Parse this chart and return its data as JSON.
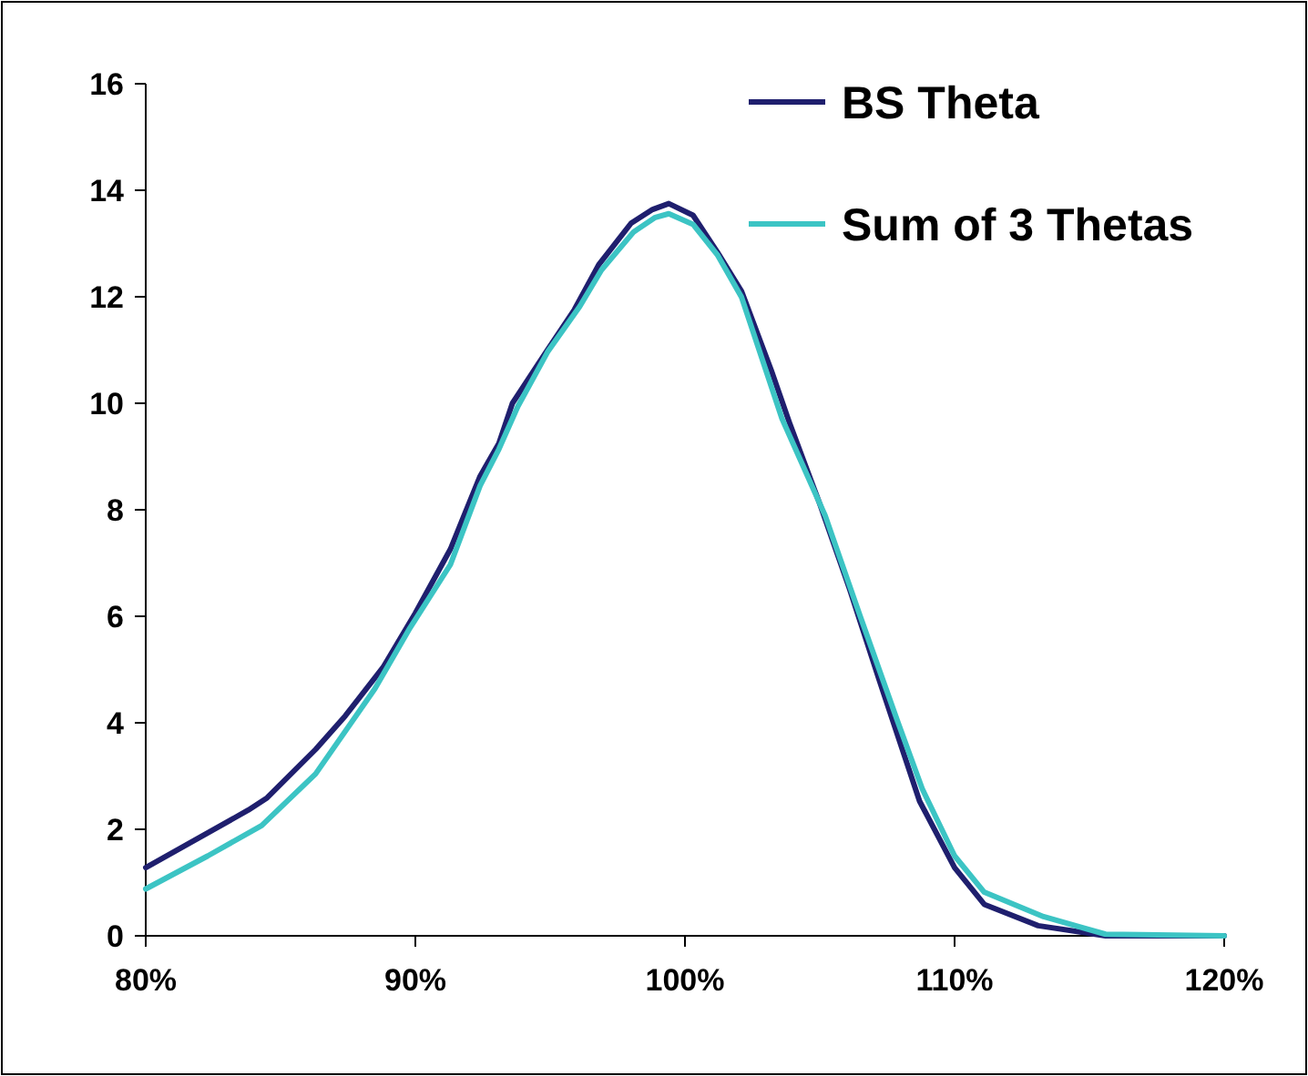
{
  "chart_data": {
    "type": "line",
    "xlim": [
      80,
      120
    ],
    "ylim": [
      0,
      16
    ],
    "xticks": [
      {
        "value": 80,
        "label": "80%"
      },
      {
        "value": 90,
        "label": "90%"
      },
      {
        "value": 100,
        "label": "100%"
      },
      {
        "value": 110,
        "label": "110%"
      },
      {
        "value": 120,
        "label": "120%"
      }
    ],
    "yticks": [
      0,
      2,
      4,
      6,
      8,
      10,
      12,
      14,
      16
    ],
    "grid": false,
    "legend": "top right",
    "marker": "none",
    "line_style": "solid",
    "series": [
      {
        "name": "BS Theta",
        "color": "#1f1f6e",
        "x": [
          80,
          83.8,
          84.5,
          86.3,
          87.4,
          88.8,
          90,
          91.3,
          92.4,
          93.1,
          93.6,
          94.9,
          95.9,
          96.8,
          98,
          98.8,
          99.4,
          100.3,
          101.2,
          102.1,
          103.2,
          103.9,
          105,
          106.1,
          107.2,
          108.7,
          110,
          111.1,
          113.1,
          115.6,
          120
        ],
        "values": [
          1.28,
          2.36,
          2.59,
          3.5,
          4.13,
          5.04,
          6.06,
          7.26,
          8.63,
          9.25,
          10.0,
          11.0,
          11.76,
          12.6,
          13.38,
          13.64,
          13.75,
          13.53,
          12.84,
          12.1,
          10.62,
          9.6,
          8.11,
          6.52,
          4.81,
          2.53,
          1.28,
          0.59,
          0.19,
          0,
          0
        ]
      },
      {
        "name": "Sum of 3 Thetas",
        "color": "#3cc4c4",
        "x": [
          80,
          82.3,
          84.3,
          86.3,
          88.5,
          89.8,
          91.3,
          92.4,
          93.1,
          93.8,
          94.9,
          96.1,
          96.9,
          98.1,
          98.9,
          99.4,
          100.3,
          101.2,
          102.1,
          103.6,
          105.2,
          106.5,
          107.9,
          108.8,
          110,
          111.1,
          113.3,
          115.6,
          120
        ],
        "values": [
          0.88,
          1.5,
          2.07,
          3.04,
          4.64,
          5.78,
          6.97,
          8.45,
          9.14,
          9.94,
          10.96,
          11.82,
          12.5,
          13.22,
          13.49,
          13.56,
          13.36,
          12.79,
          11.99,
          9.71,
          7.89,
          6.0,
          4.01,
          2.76,
          1.5,
          0.82,
          0.36,
          0.03,
          0
        ]
      }
    ]
  }
}
